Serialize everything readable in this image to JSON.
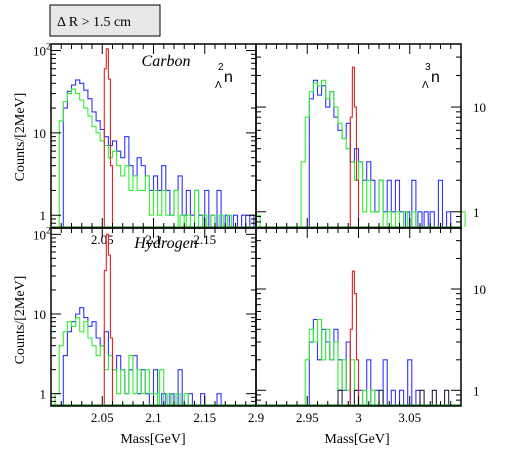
{
  "cut_label": "Δ R > 1.5 cm",
  "y_axis_label": "Counts/[2MeV]",
  "x_axis_label": "Mass[GeV]",
  "panel_labels": {
    "carbon": "Carbon",
    "hydrogen": "Hydrogen",
    "nn_left": {
      "sup": "2",
      "sub": "Λ",
      "sym": "n"
    },
    "nn_right": {
      "sup": "3",
      "sub": "Λ",
      "sym": "n"
    }
  },
  "colors": {
    "blue": "#3333ff",
    "green": "#33ee33",
    "red": "#dd2222",
    "black": "#222244",
    "axis": "#000000",
    "baseline": "#2a9a2a"
  },
  "chart_data": [
    {
      "type": "histogram",
      "panel": "top-left",
      "label": "Carbon",
      "xlim": [
        2.0,
        2.2
      ],
      "ylim": [
        0.7,
        120
      ],
      "yscale": "log",
      "x_ticks": [
        2.05,
        2.1,
        2.15
      ],
      "y_ticks": [
        1,
        10,
        100
      ],
      "y_tick_labels": [
        "1",
        "10",
        "10²"
      ],
      "series": [
        {
          "color": "blue",
          "bins": [
            [
              2.012,
              20
            ],
            [
              2.016,
              32
            ],
            [
              2.02,
              38
            ],
            [
              2.024,
              44
            ],
            [
              2.028,
              40
            ],
            [
              2.032,
              33
            ],
            [
              2.036,
              26
            ],
            [
              2.04,
              18
            ],
            [
              2.044,
              14
            ],
            [
              2.048,
              11
            ],
            [
              2.052,
              9
            ],
            [
              2.056,
              7
            ],
            [
              2.06,
              8
            ],
            [
              2.064,
              6
            ],
            [
              2.068,
              5
            ],
            [
              2.072,
              9
            ],
            [
              2.076,
              4
            ],
            [
              2.08,
              3
            ],
            [
              2.084,
              5
            ],
            [
              2.088,
              4
            ],
            [
              2.092,
              3
            ],
            [
              2.096,
              2
            ],
            [
              2.1,
              3
            ],
            [
              2.104,
              2
            ],
            [
              2.108,
              4
            ],
            [
              2.112,
              2
            ],
            [
              2.116,
              1
            ],
            [
              2.12,
              2
            ],
            [
              2.124,
              3
            ],
            [
              2.128,
              1
            ],
            [
              2.132,
              2
            ],
            [
              2.136,
              1
            ],
            [
              2.14,
              2
            ],
            [
              2.144,
              1
            ],
            [
              2.15,
              2
            ],
            [
              2.156,
              1
            ],
            [
              2.162,
              2
            ],
            [
              2.17,
              1
            ],
            [
              2.178,
              1
            ],
            [
              2.186,
              1
            ],
            [
              2.194,
              1
            ]
          ]
        },
        {
          "color": "green",
          "bins": [
            [
              2.008,
              14
            ],
            [
              2.012,
              24
            ],
            [
              2.016,
              30
            ],
            [
              2.02,
              34
            ],
            [
              2.024,
              30
            ],
            [
              2.028,
              25
            ],
            [
              2.032,
              20
            ],
            [
              2.036,
              16
            ],
            [
              2.04,
              12
            ],
            [
              2.044,
              10
            ],
            [
              2.048,
              8
            ],
            [
              2.052,
              7
            ],
            [
              2.056,
              5
            ],
            [
              2.06,
              6
            ],
            [
              2.064,
              4
            ],
            [
              2.068,
              3
            ],
            [
              2.072,
              4
            ],
            [
              2.076,
              2
            ],
            [
              2.08,
              3
            ],
            [
              2.084,
              2
            ],
            [
              2.088,
              2
            ],
            [
              2.092,
              3
            ],
            [
              2.096,
              1
            ],
            [
              2.1,
              2
            ],
            [
              2.104,
              1
            ],
            [
              2.108,
              2
            ],
            [
              2.112,
              1
            ],
            [
              2.116,
              1
            ],
            [
              2.12,
              2
            ],
            [
              2.126,
              1
            ],
            [
              2.132,
              1
            ],
            [
              2.14,
              2
            ],
            [
              2.148,
              1
            ],
            [
              2.156,
              1
            ],
            [
              2.164,
              1
            ],
            [
              2.172,
              1
            ],
            [
              2.2,
              1
            ]
          ]
        },
        {
          "color": "red",
          "bins": [
            [
              2.052,
              60
            ],
            [
              2.054,
              105
            ],
            [
              2.056,
              45
            ],
            [
              2.058,
              4
            ]
          ]
        }
      ]
    },
    {
      "type": "histogram",
      "panel": "top-right",
      "label": "3Λn",
      "xlim": [
        2.9,
        3.1
      ],
      "ylim": [
        0.7,
        40
      ],
      "yscale": "log",
      "y_ticks": [
        1,
        10
      ],
      "y_tick_labels": [
        "1",
        "10"
      ],
      "series": [
        {
          "color": "blue",
          "bins": [
            [
              2.952,
              12
            ],
            [
              2.956,
              18
            ],
            [
              2.96,
              13
            ],
            [
              2.964,
              16
            ],
            [
              2.968,
              10
            ],
            [
              2.972,
              14
            ],
            [
              2.976,
              8
            ],
            [
              2.98,
              6
            ],
            [
              2.984,
              5
            ],
            [
              2.988,
              7
            ],
            [
              2.992,
              3
            ],
            [
              2.996,
              4
            ],
            [
              3.0,
              3
            ],
            [
              3.004,
              2
            ],
            [
              3.008,
              3
            ],
            [
              3.012,
              2
            ],
            [
              3.016,
              1
            ],
            [
              3.02,
              2
            ],
            [
              3.024,
              1
            ],
            [
              3.028,
              2
            ],
            [
              3.032,
              1
            ],
            [
              3.036,
              2
            ],
            [
              3.04,
              1
            ],
            [
              3.046,
              1
            ],
            [
              3.052,
              2
            ],
            [
              3.058,
              1
            ],
            [
              3.064,
              1
            ],
            [
              3.07,
              1
            ],
            [
              3.078,
              2
            ],
            [
              3.086,
              1
            ]
          ]
        },
        {
          "color": "green",
          "bins": [
            [
              2.944,
              3
            ],
            [
              2.948,
              8
            ],
            [
              2.952,
              14
            ],
            [
              2.956,
              17
            ],
            [
              2.96,
              16
            ],
            [
              2.964,
              18
            ],
            [
              2.968,
              12
            ],
            [
              2.972,
              14
            ],
            [
              2.976,
              10
            ],
            [
              2.98,
              7
            ],
            [
              2.984,
              5
            ],
            [
              2.988,
              4
            ],
            [
              2.992,
              3
            ],
            [
              2.996,
              2
            ],
            [
              3.0,
              3
            ],
            [
              3.004,
              1
            ],
            [
              3.008,
              2
            ],
            [
              3.012,
              1
            ],
            [
              3.016,
              1
            ],
            [
              3.02,
              2
            ],
            [
              3.028,
              1
            ],
            [
              3.036,
              1
            ],
            [
              3.044,
              1
            ],
            [
              3.052,
              1
            ],
            [
              3.1,
              1
            ]
          ]
        },
        {
          "color": "red",
          "bins": [
            [
              2.992,
              8
            ],
            [
              2.994,
              24
            ],
            [
              2.996,
              10
            ],
            [
              2.998,
              2
            ]
          ]
        }
      ]
    },
    {
      "type": "histogram",
      "panel": "bottom-left",
      "label": "Hydrogen",
      "xlim": [
        2.0,
        2.2
      ],
      "ylim": [
        0.7,
        120
      ],
      "yscale": "log",
      "x_ticks": [
        2.05,
        2.1,
        2.15
      ],
      "y_ticks": [
        1,
        10,
        100
      ],
      "y_tick_labels": [
        "1",
        "10",
        "10²"
      ],
      "series": [
        {
          "color": "blue",
          "bins": [
            [
              2.012,
              3
            ],
            [
              2.016,
              6
            ],
            [
              2.02,
              8
            ],
            [
              2.024,
              10
            ],
            [
              2.028,
              12
            ],
            [
              2.032,
              9
            ],
            [
              2.036,
              7
            ],
            [
              2.04,
              8
            ],
            [
              2.044,
              5
            ],
            [
              2.048,
              4
            ],
            [
              2.052,
              6
            ],
            [
              2.056,
              3
            ],
            [
              2.06,
              2
            ],
            [
              2.064,
              3
            ],
            [
              2.068,
              2
            ],
            [
              2.072,
              1
            ],
            [
              2.076,
              2
            ],
            [
              2.08,
              3
            ],
            [
              2.084,
              1
            ],
            [
              2.088,
              2
            ],
            [
              2.092,
              1
            ],
            [
              2.1,
              2
            ],
            [
              2.108,
              1
            ],
            [
              2.116,
              1
            ],
            [
              2.124,
              2
            ],
            [
              2.134,
              1
            ],
            [
              2.146,
              1
            ],
            [
              2.162,
              1
            ]
          ]
        },
        {
          "color": "green",
          "bins": [
            [
              2.004,
              1
            ],
            [
              2.008,
              4
            ],
            [
              2.012,
              6
            ],
            [
              2.016,
              8
            ],
            [
              2.02,
              7
            ],
            [
              2.024,
              9
            ],
            [
              2.028,
              6
            ],
            [
              2.032,
              8
            ],
            [
              2.036,
              5
            ],
            [
              2.04,
              4
            ],
            [
              2.044,
              3
            ],
            [
              2.048,
              4
            ],
            [
              2.052,
              2
            ],
            [
              2.056,
              3
            ],
            [
              2.06,
              2
            ],
            [
              2.064,
              1
            ],
            [
              2.068,
              2
            ],
            [
              2.072,
              1
            ],
            [
              2.076,
              3
            ],
            [
              2.08,
              1
            ],
            [
              2.084,
              2
            ],
            [
              2.088,
              1
            ],
            [
              2.092,
              2
            ],
            [
              2.096,
              1
            ],
            [
              2.1,
              1
            ],
            [
              2.106,
              2
            ],
            [
              2.114,
              1
            ],
            [
              2.122,
              1
            ],
            [
              2.13,
              1
            ]
          ]
        },
        {
          "color": "red",
          "bins": [
            [
              2.052,
              35
            ],
            [
              2.054,
              100
            ],
            [
              2.056,
              55
            ],
            [
              2.058,
              5
            ]
          ]
        }
      ]
    },
    {
      "type": "histogram",
      "panel": "bottom-right",
      "xlim": [
        2.9,
        3.1
      ],
      "ylim": [
        0.7,
        40
      ],
      "yscale": "log",
      "x_ticks": [
        2.95,
        3.0,
        3.05
      ],
      "x_tick_labels": [
        "2.95",
        "3",
        "3.05"
      ],
      "y_ticks": [
        1,
        10
      ],
      "y_tick_labels": [
        "1",
        "10"
      ],
      "series": [
        {
          "color": "blue",
          "bins": [
            [
              2.952,
              3
            ],
            [
              2.956,
              5
            ],
            [
              2.96,
              2
            ],
            [
              2.964,
              4
            ],
            [
              2.968,
              3
            ],
            [
              2.972,
              2
            ],
            [
              2.976,
              4
            ],
            [
              2.98,
              2
            ],
            [
              2.984,
              1
            ],
            [
              2.988,
              3
            ],
            [
              3.0,
              1
            ],
            [
              3.008,
              2
            ],
            [
              3.016,
              1
            ],
            [
              3.024,
              2
            ],
            [
              3.032,
              1
            ],
            [
              3.04,
              1
            ],
            [
              3.048,
              2
            ],
            [
              3.056,
              1
            ]
          ]
        },
        {
          "color": "green",
          "bins": [
            [
              2.948,
              2
            ],
            [
              2.952,
              4
            ],
            [
              2.956,
              3
            ],
            [
              2.96,
              5
            ],
            [
              2.964,
              2
            ],
            [
              2.968,
              4
            ],
            [
              2.972,
              2
            ],
            [
              2.976,
              3
            ],
            [
              2.98,
              1
            ],
            [
              2.984,
              2
            ],
            [
              2.988,
              1
            ],
            [
              2.992,
              2
            ],
            [
              2.996,
              1
            ],
            [
              3.004,
              1
            ],
            [
              3.012,
              1
            ]
          ]
        },
        {
          "color": "black",
          "bins": [
            [
              2.98,
              1
            ],
            [
              2.996,
              1
            ],
            [
              3.02,
              1
            ],
            [
              3.06,
              1
            ],
            [
              3.072,
              1
            ],
            [
              3.084,
              1
            ]
          ]
        },
        {
          "color": "red",
          "bins": [
            [
              2.992,
              4
            ],
            [
              2.994,
              15
            ],
            [
              2.996,
              9
            ],
            [
              2.998,
              2
            ]
          ]
        }
      ]
    }
  ],
  "shared_x_tick_label_left": "2.9"
}
